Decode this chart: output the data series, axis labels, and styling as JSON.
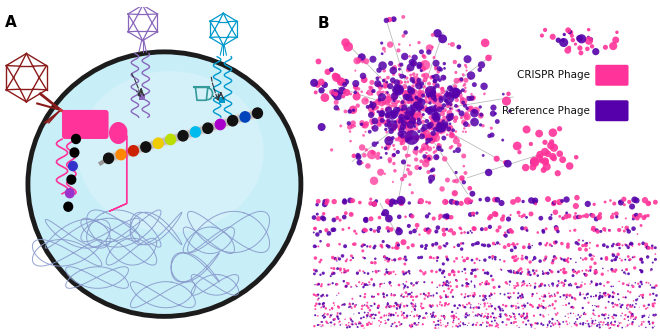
{
  "panel_labels": [
    "A",
    "B"
  ],
  "panel_label_fontsize": 11,
  "panel_label_weight": "bold",
  "background_color": "#ffffff",
  "figsize": [
    6.6,
    3.36
  ],
  "dpi": 100,
  "cell_fill_color": "#c5eaf5",
  "cell_border_color": "#1a1a1a",
  "crispr_color": "#ff3399",
  "reference_color": "#5500aa",
  "legend_crispr_label": "CRISPR Phage",
  "legend_reference_label": "Reference Phage"
}
